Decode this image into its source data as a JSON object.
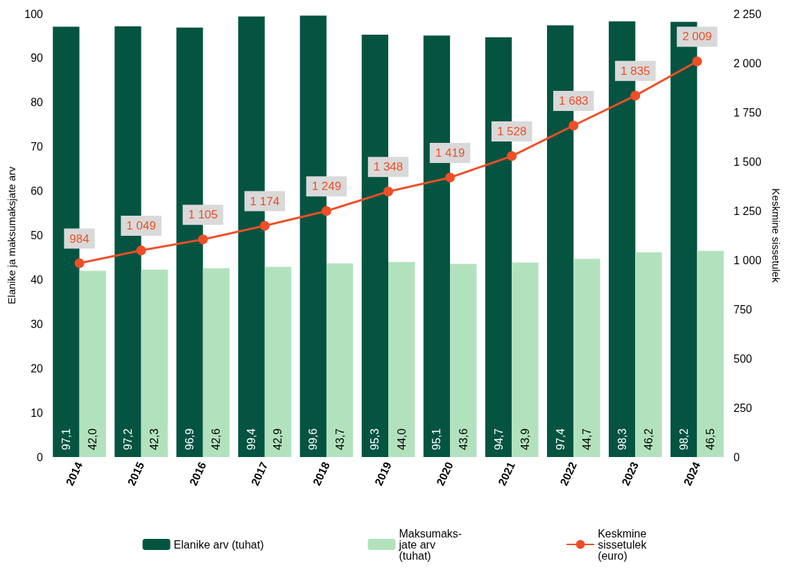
{
  "chart_data": {
    "type": "bar",
    "ylabel": "Elanike ja maksumaksjate arv",
    "y2label": "Keskmine sissetulek",
    "categories": [
      "2014",
      "2015",
      "2016",
      "2017",
      "2018",
      "2019",
      "2020",
      "2021",
      "2022",
      "2023",
      "2024"
    ],
    "series": [
      {
        "name": "Elanike arv (tuhat)",
        "color": "#045441",
        "values": [
          97.1,
          97.2,
          96.9,
          99.4,
          99.6,
          95.3,
          95.1,
          94.7,
          97.4,
          98.3,
          98.2
        ],
        "value_labels": [
          "97,1",
          "97,2",
          "96,9",
          "99,4",
          "99,6",
          "95,3",
          "95,1",
          "94,7",
          "97,4",
          "98,3",
          "98,2"
        ]
      },
      {
        "name": "Maksumaks-\njate arv\n(tuhat)",
        "color": "#b2e2bd",
        "values": [
          42.0,
          42.3,
          42.6,
          42.9,
          43.7,
          44.0,
          43.6,
          43.9,
          44.7,
          46.2,
          46.5
        ],
        "value_labels": [
          "42,0",
          "42,3",
          "42,6",
          "42,9",
          "43,7",
          "44,0",
          "43,6",
          "43,9",
          "44,7",
          "46,2",
          "46,5"
        ]
      },
      {
        "name": "Keskmine\nsissetulek\n(euro)",
        "type": "line",
        "axis": "y2",
        "color": "#ee4f27",
        "marker": "circle",
        "line_style": "solid",
        "values": [
          984,
          1049,
          1105,
          1174,
          1249,
          1348,
          1419,
          1528,
          1683,
          1835,
          2009
        ],
        "value_labels": [
          "984",
          "1 049",
          "1 105",
          "1 174",
          "1 249",
          "1 348",
          "1 419",
          "1 528",
          "1 683",
          "1 835",
          "2 009"
        ]
      }
    ],
    "ylim": [
      0,
      100
    ],
    "yticks": [
      0,
      10,
      20,
      30,
      40,
      50,
      60,
      70,
      80,
      90,
      100
    ],
    "y2lim": [
      0,
      2250
    ],
    "y2ticks": [
      0,
      250,
      500,
      750,
      {
        "value": 1000,
        "label": "1 000"
      },
      {
        "value": 1250,
        "label": "1 250"
      },
      {
        "value": 1500,
        "label": "1 500"
      },
      {
        "value": 1750,
        "label": "1 750"
      },
      {
        "value": 2000,
        "label": "2 000"
      },
      {
        "value": 2250,
        "label": "2 250"
      }
    ],
    "grid": false,
    "legend": "bottom"
  }
}
